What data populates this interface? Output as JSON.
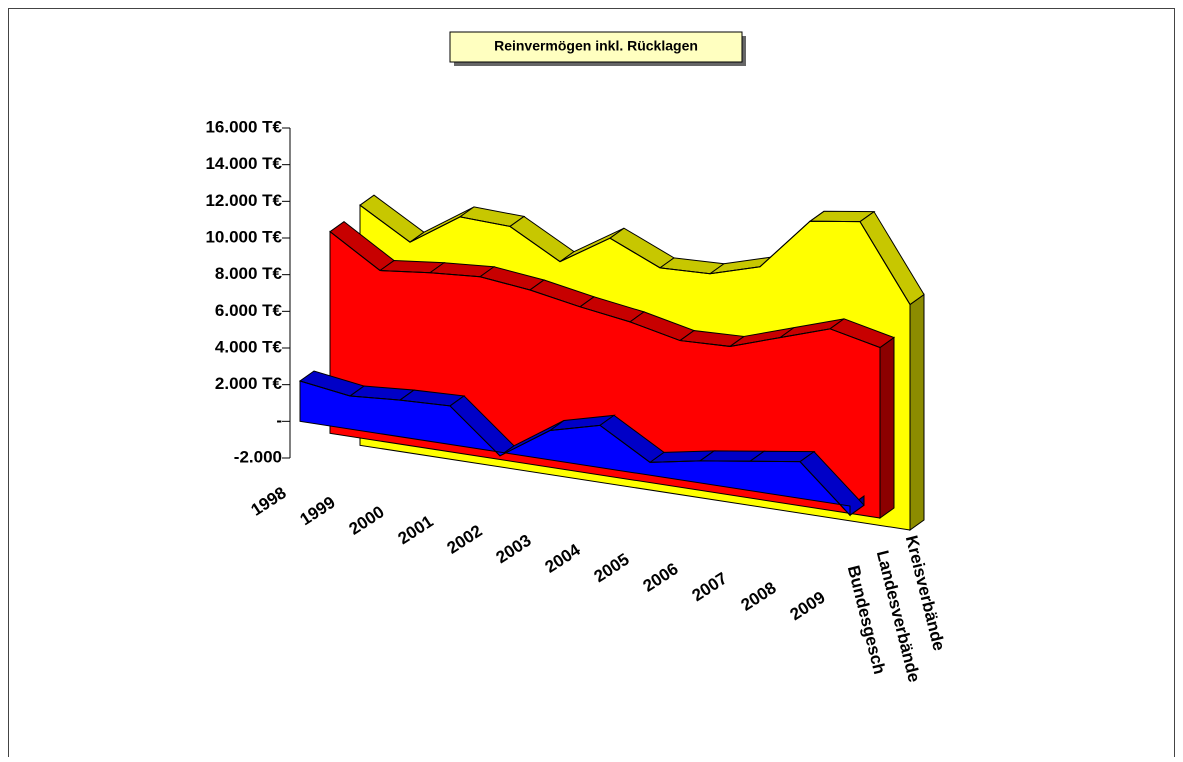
{
  "chart_data": {
    "type": "area3d",
    "title": "Reinvermögen inkl. Rücklagen",
    "categories": [
      "1998",
      "1999",
      "2000",
      "2001",
      "2002",
      "2003",
      "2004",
      "2005",
      "2006",
      "2007",
      "2008",
      "2009"
    ],
    "series": [
      {
        "name": "Bundesgesch",
        "color": "#0000ff",
        "values": [
          2200,
          1800,
          2000,
          2100,
          -200,
          1600,
          2300,
          700,
          1200,
          1600,
          2000,
          -500
        ]
      },
      {
        "name": "Landesverbände",
        "color": "#ff0000",
        "values": [
          11000,
          9300,
          9600,
          9800,
          9500,
          9000,
          8600,
          8000,
          8100,
          9000,
          9900,
          9300
        ]
      },
      {
        "name": "Kreisverbände",
        "color": "#ffff00",
        "values": [
          13100,
          11500,
          13300,
          13200,
          11700,
          13400,
          12200,
          12300,
          13100,
          16000,
          16400,
          12300
        ]
      }
    ],
    "ylim": [
      -2000,
      16000
    ],
    "yticks": [
      {
        "value": -2000,
        "label": "-2.000"
      },
      {
        "value": 0,
        "label": "-"
      },
      {
        "value": 2000,
        "label": "2.000 T€"
      },
      {
        "value": 4000,
        "label": "4.000 T€"
      },
      {
        "value": 6000,
        "label": "6.000 T€"
      },
      {
        "value": 8000,
        "label": "8.000 T€"
      },
      {
        "value": 10000,
        "label": "10.000 T€"
      },
      {
        "value": 12000,
        "label": "12.000 T€"
      },
      {
        "value": 14000,
        "label": "14.000 T€"
      },
      {
        "value": 16000,
        "label": "16.000 T€"
      }
    ]
  }
}
